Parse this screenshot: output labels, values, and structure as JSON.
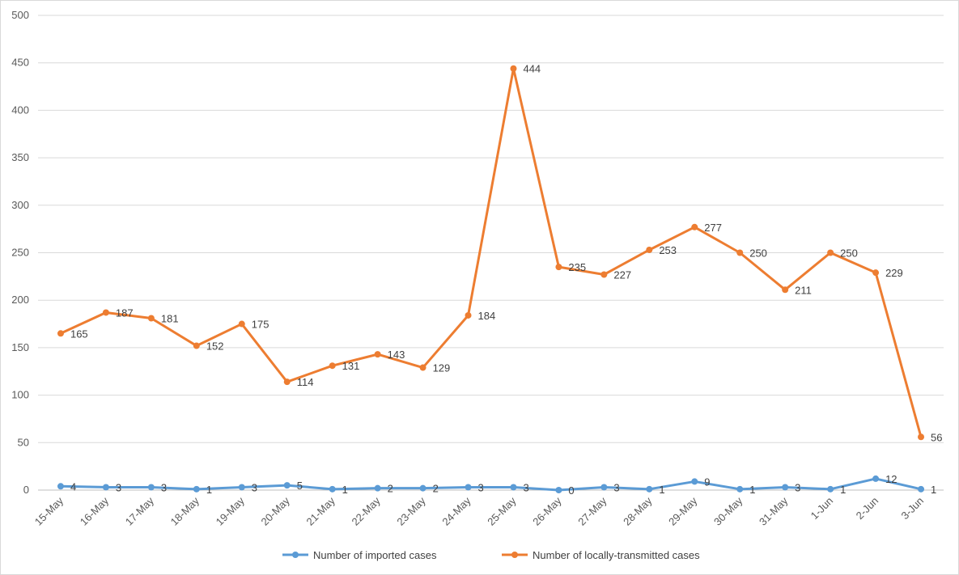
{
  "chart_data": {
    "type": "line",
    "title": "",
    "xlabel": "",
    "ylabel": "",
    "ylim": [
      0,
      500
    ],
    "yticks": [
      0,
      50,
      100,
      150,
      200,
      250,
      300,
      350,
      400,
      450,
      500
    ],
    "grid": true,
    "legend_position": "bottom",
    "categories": [
      "15-May",
      "16-May",
      "17-May",
      "18-May",
      "19-May",
      "20-May",
      "21-May",
      "22-May",
      "23-May",
      "24-May",
      "25-May",
      "26-May",
      "27-May",
      "28-May",
      "29-May",
      "30-May",
      "31-May",
      "1-Jun",
      "2-Jun",
      "3-Jun"
    ],
    "series": [
      {
        "name": "Number of imported cases",
        "color": "#5b9bd5",
        "values": [
          4,
          3,
          3,
          1,
          3,
          5,
          1,
          2,
          2,
          3,
          3,
          0,
          3,
          1,
          9,
          1,
          3,
          1,
          12,
          1
        ]
      },
      {
        "name": "Number of locally-transmitted cases",
        "color": "#ed7d31",
        "values": [
          165,
          187,
          181,
          152,
          175,
          114,
          131,
          143,
          129,
          184,
          444,
          235,
          227,
          253,
          277,
          250,
          211,
          250,
          229,
          56
        ]
      }
    ]
  }
}
